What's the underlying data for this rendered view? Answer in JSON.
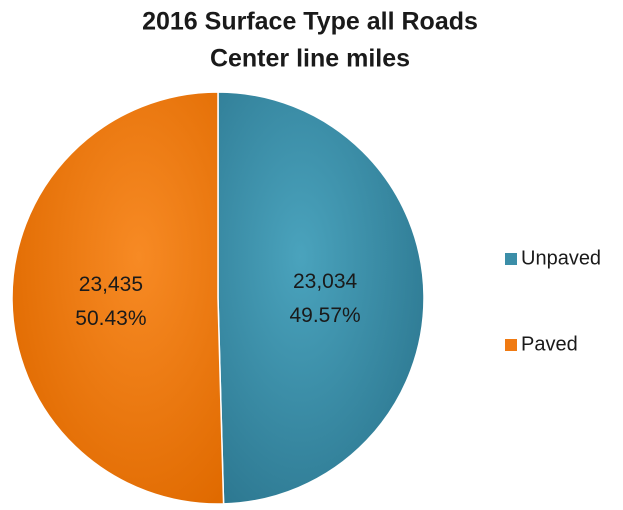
{
  "chart_data": {
    "type": "pie",
    "title": "2016 Surface Type all Roads",
    "subtitle": "Center line miles",
    "categories": [
      "Unpaved",
      "Paved"
    ],
    "values": [
      23034,
      23435
    ],
    "value_labels": [
      "23,034",
      "23,435"
    ],
    "percents": [
      49.57,
      50.43
    ],
    "percent_labels": [
      "49.57%",
      "50.43%"
    ],
    "colors": [
      "#3b8ea8",
      "#f07a12"
    ],
    "legend": "right"
  }
}
